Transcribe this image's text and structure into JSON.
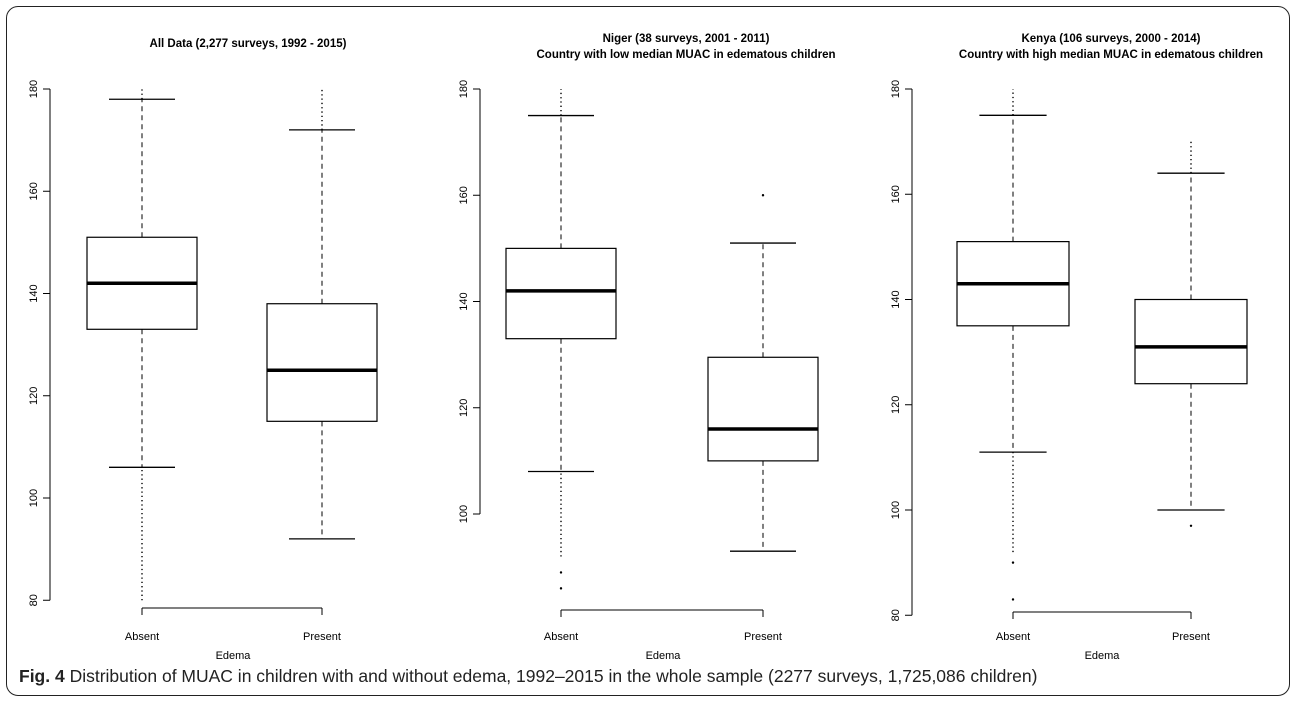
{
  "figure": {
    "caption_label": "Fig. 4",
    "caption_text": " Distribution of MUAC in children with and without edema, 1992–2015 in the whole sample (2277 surveys, 1,725,086 children)"
  },
  "chart_data": [
    {
      "type": "box",
      "title_lines": [
        "All Data (2,277 surveys, 1992 - 2015)"
      ],
      "xlabel": "Edema",
      "ylabel": "",
      "categories": [
        "Absent",
        "Present"
      ],
      "ylim": [
        78,
        182
      ],
      "yticks": [
        80,
        100,
        120,
        140,
        160,
        180
      ],
      "boxes": [
        {
          "category": "Absent",
          "whisker_low": 106,
          "q1": 133,
          "median": 142,
          "q3": 151,
          "whisker_high": 178,
          "outlier_range_low": [
            80,
            106
          ],
          "outlier_range_high": [
            178,
            180
          ],
          "outliers": []
        },
        {
          "category": "Present",
          "whisker_low": 92,
          "q1": 115,
          "median": 125,
          "q3": 138,
          "whisker_high": 172,
          "outlier_range_low": null,
          "outlier_range_high": [
            172,
            180
          ],
          "outliers": []
        }
      ]
    },
    {
      "type": "box",
      "title_lines": [
        "Niger (38 surveys, 2001 - 2011)",
        "Country with low median MUAC in edematous children"
      ],
      "xlabel": "Edema",
      "ylabel": "",
      "categories": [
        "Absent",
        "Present"
      ],
      "ylim": [
        83,
        182
      ],
      "yticks": [
        100,
        120,
        140,
        160,
        180
      ],
      "boxes": [
        {
          "category": "Absent",
          "whisker_low": 108,
          "q1": 133,
          "median": 142,
          "q3": 150,
          "whisker_high": 175,
          "outlier_range_low": [
            92,
            108
          ],
          "outlier_range_high": [
            175,
            180
          ],
          "outliers": [
            89,
            86
          ]
        },
        {
          "category": "Present",
          "whisker_low": 93,
          "q1": 110,
          "median": 116,
          "q3": 129.5,
          "whisker_high": 151,
          "outlier_range_low": null,
          "outlier_range_high": null,
          "outliers": [
            160
          ]
        }
      ]
    },
    {
      "type": "box",
      "title_lines": [
        "Kenya (106 surveys, 2000 - 2014)",
        "Country with high median MUAC in edematous children"
      ],
      "xlabel": "Edema",
      "ylabel": "",
      "categories": [
        "Absent",
        "Present"
      ],
      "ylim": [
        79,
        182
      ],
      "yticks": [
        80,
        100,
        120,
        140,
        160,
        180
      ],
      "boxes": [
        {
          "category": "Absent",
          "whisker_low": 111,
          "q1": 135,
          "median": 143,
          "q3": 151,
          "whisker_high": 175,
          "outlier_range_low": [
            92,
            111
          ],
          "outlier_range_high": [
            175,
            180
          ],
          "outliers": [
            90,
            83
          ]
        },
        {
          "category": "Present",
          "whisker_low": 100,
          "q1": 124,
          "median": 131,
          "q3": 140,
          "whisker_high": 164,
          "outlier_range_low": null,
          "outlier_range_high": [
            164,
            170
          ],
          "outliers": [
            97
          ]
        }
      ]
    }
  ]
}
